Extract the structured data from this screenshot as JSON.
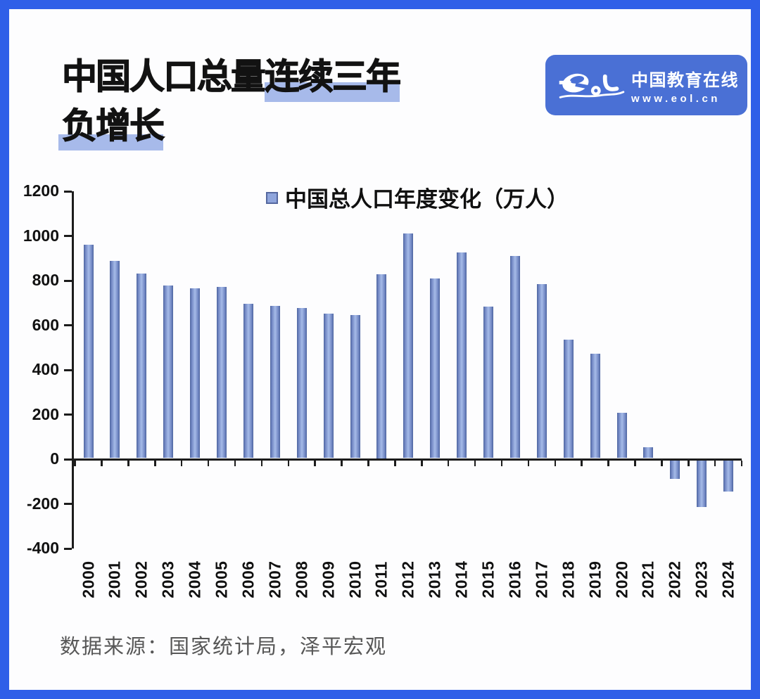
{
  "title": {
    "line1_normal": "中国人口总量",
    "line1_highlight": "连续三年",
    "line2_highlight": "负增长"
  },
  "logo": {
    "name": "中国教育在线",
    "url": "www.eol.cn"
  },
  "source": {
    "text": "数据来源：国家统计局，泽平宏观"
  },
  "colors": {
    "frame": "#2f5fe8",
    "highlight": "#a7baea",
    "logo_bg": "#4a70d5",
    "bar_mid": "#a6bbe8",
    "bar_edge": "#4d649f",
    "axis": "#1c1c1c"
  },
  "chart_data": {
    "type": "bar",
    "legend": "中国总人口年度变化（万人）",
    "categories": [
      "2000",
      "2001",
      "2002",
      "2003",
      "2004",
      "2005",
      "2006",
      "2007",
      "2008",
      "2009",
      "2010",
      "2011",
      "2012",
      "2013",
      "2014",
      "2015",
      "2016",
      "2017",
      "2018",
      "2019",
      "2020",
      "2021",
      "2022",
      "2023",
      "2024"
    ],
    "values": [
      957,
      884,
      826,
      774,
      761,
      768,
      692,
      681,
      673,
      647,
      641,
      825,
      1006,
      804,
      920,
      680,
      906,
      779,
      530,
      467,
      204,
      48,
      -85,
      -208,
      -139
    ],
    "title": "",
    "xlabel": "",
    "ylabel": "",
    "ylim": [
      -400,
      1200
    ],
    "yticks": [
      1200,
      1000,
      800,
      600,
      400,
      200,
      0,
      -200,
      -400
    ],
    "grid": false,
    "legend_position": "top-center"
  }
}
